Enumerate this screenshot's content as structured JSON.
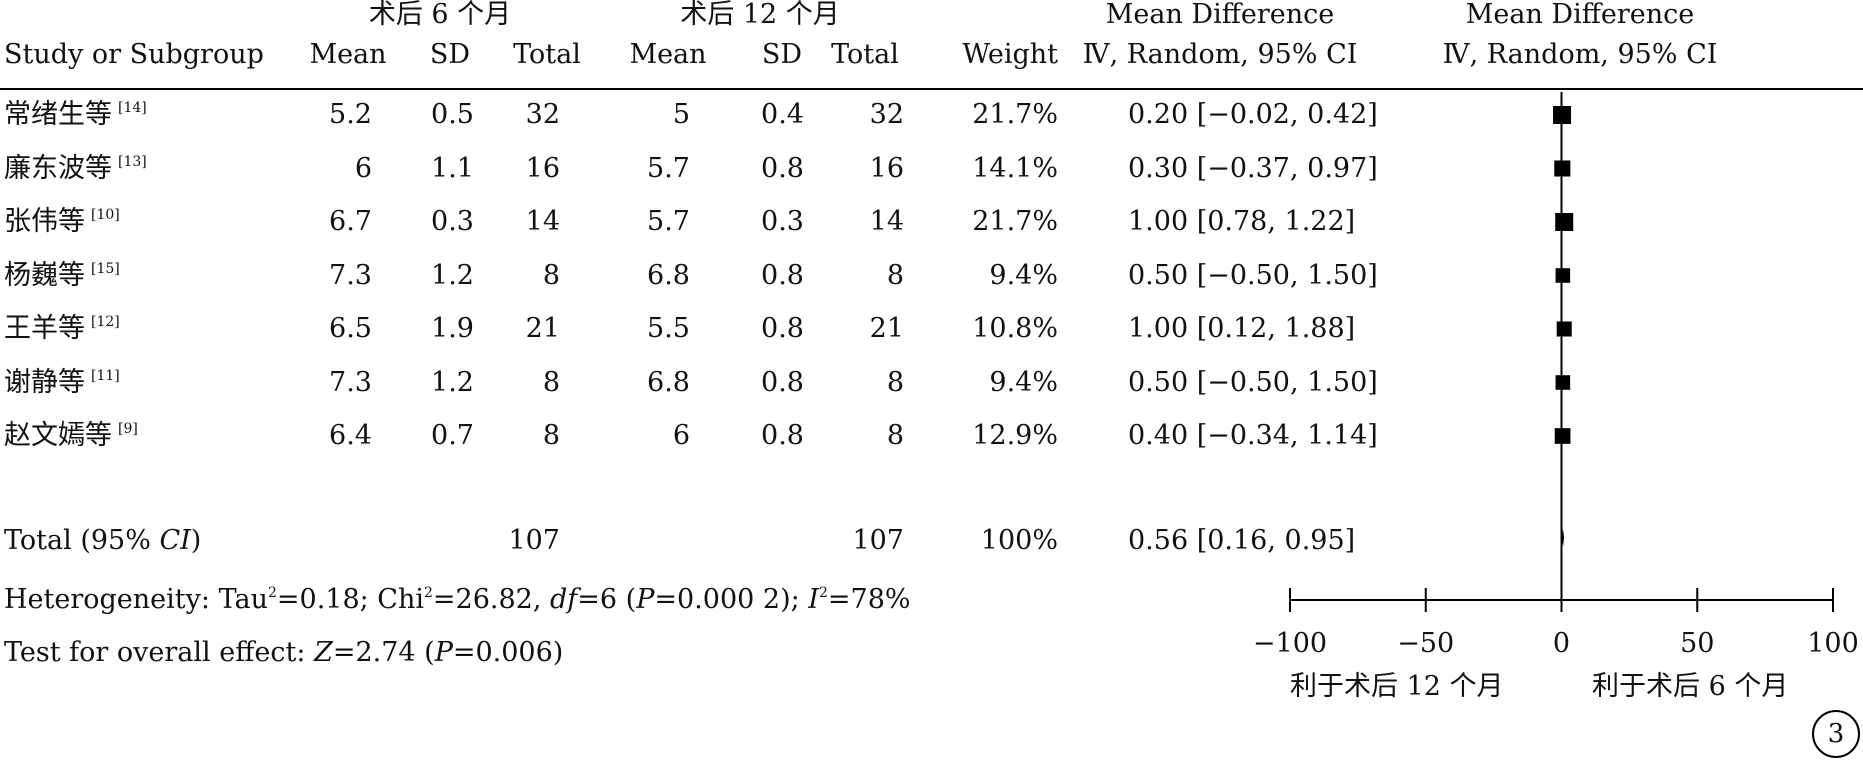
{
  "groups": {
    "experimental": "术后 6 个月",
    "control": "术后 12 个月",
    "md_header": "Mean Difference",
    "plot_header": "Mean Difference"
  },
  "columns": {
    "study": "Study or Subgroup",
    "mean1": "Mean",
    "sd1": "SD",
    "total1": "Total",
    "mean2": "Mean",
    "sd2": "SD",
    "total2": "Total",
    "weight": "Weight",
    "md": "Ⅳ, Random, 95% CI",
    "plot": "Ⅳ, Random, 95% CI"
  },
  "rows": [
    {
      "name": "常绪生等",
      "ref": "[14]",
      "mean1": "5.2",
      "sd1": "0.5",
      "total1": "32",
      "mean2": "5",
      "sd2": "0.4",
      "total2": "32",
      "weight": "21.7%",
      "ci": "0.20 [−0.02, 0.42]"
    },
    {
      "name": "廉东波等",
      "ref": "[13]",
      "mean1": "6",
      "sd1": "1.1",
      "total1": "16",
      "mean2": "5.7",
      "sd2": "0.8",
      "total2": "16",
      "weight": "14.1%",
      "ci": "0.30 [−0.37, 0.97]"
    },
    {
      "name": "张伟等",
      "ref": "[10]",
      "mean1": "6.7",
      "sd1": "0.3",
      "total1": "14",
      "mean2": "5.7",
      "sd2": "0.3",
      "total2": "14",
      "weight": "21.7%",
      "ci": "1.00 [0.78, 1.22]"
    },
    {
      "name": "杨巍等",
      "ref": "[15]",
      "mean1": "7.3",
      "sd1": "1.2",
      "total1": "8",
      "mean2": "6.8",
      "sd2": "0.8",
      "total2": "8",
      "weight": "9.4%",
      "ci": "0.50 [−0.50, 1.50]"
    },
    {
      "name": "王羊等",
      "ref": "[12]",
      "mean1": "6.5",
      "sd1": "1.9",
      "total1": "21",
      "mean2": "5.5",
      "sd2": "0.8",
      "total2": "21",
      "weight": "10.8%",
      "ci": "1.00 [0.12, 1.88]"
    },
    {
      "name": "谢静等",
      "ref": "[11]",
      "mean1": "7.3",
      "sd1": "1.2",
      "total1": "8",
      "mean2": "6.8",
      "sd2": "0.8",
      "total2": "8",
      "weight": "9.4%",
      "ci": "0.50 [−0.50, 1.50]"
    },
    {
      "name": "赵文嫣等",
      "ref": "[9]",
      "mean1": "6.4",
      "sd1": "0.7",
      "total1": "8",
      "mean2": "6",
      "sd2": "0.8",
      "total2": "8",
      "weight": "12.9%",
      "ci": "0.40 [−0.34, 1.14]"
    }
  ],
  "total_row": {
    "label_prefix": "Total (95% ",
    "label_ci": "CI",
    "label_suffix": ")",
    "total1": "107",
    "total2": "107",
    "weight": "100%",
    "ci": "0.56 [0.16, 0.95]"
  },
  "heterogeneity": {
    "prefix": "Heterogeneity: Tau",
    "tau_exp": "2",
    "mid1": "=0.18; Chi",
    "chi_exp": "2",
    "mid2": "=26.82, ",
    "df": "df",
    "mid3": "=6 (",
    "p": "P",
    "mid4": "=0.000 2); ",
    "i": "I",
    "i_exp": "2",
    "end": "=78%"
  },
  "overall": {
    "prefix": "Test for overall effect: ",
    "z": "Z",
    "mid": "=2.74 (",
    "p": "P",
    "end": "=0.006)"
  },
  "favours": {
    "left": "利于术后 12 个月",
    "right": "利于术后 6 个月"
  },
  "panel_label": "3",
  "chart_data": {
    "type": "forest",
    "xlim": [
      -100,
      100
    ],
    "xticks": [
      -100,
      -50,
      0,
      50,
      100
    ],
    "xtick_labels": [
      "−100",
      "−50",
      "0",
      "50",
      "100"
    ],
    "null_line": 0,
    "studies": [
      {
        "name": "常绪生等",
        "md": 0.2,
        "lower": -0.02,
        "upper": 0.42,
        "weight": 21.7
      },
      {
        "name": "廉东波等",
        "md": 0.3,
        "lower": -0.37,
        "upper": 0.97,
        "weight": 14.1
      },
      {
        "name": "张伟等",
        "md": 1.0,
        "lower": 0.78,
        "upper": 1.22,
        "weight": 21.7
      },
      {
        "name": "杨巍等",
        "md": 0.5,
        "lower": -0.5,
        "upper": 1.5,
        "weight": 9.4
      },
      {
        "name": "王羊等",
        "md": 1.0,
        "lower": 0.12,
        "upper": 1.88,
        "weight": 10.8
      },
      {
        "name": "谢静等",
        "md": 0.5,
        "lower": -0.5,
        "upper": 1.5,
        "weight": 9.4
      },
      {
        "name": "赵文嫣等",
        "md": 0.4,
        "lower": -0.34,
        "upper": 1.14,
        "weight": 12.9
      }
    ],
    "overall": {
      "md": 0.56,
      "lower": 0.16,
      "upper": 0.95
    }
  }
}
